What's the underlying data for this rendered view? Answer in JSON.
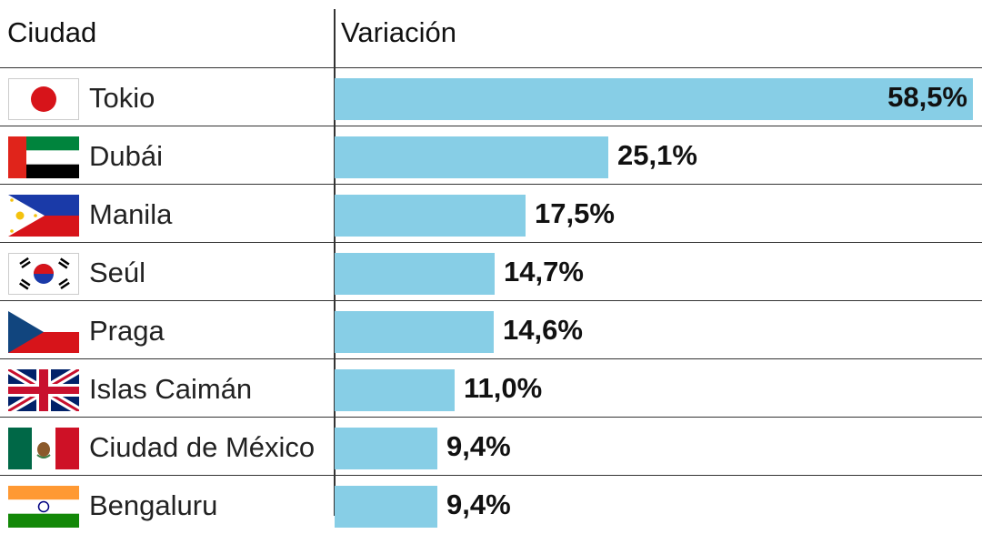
{
  "chart_data": {
    "type": "bar",
    "orientation": "horizontal",
    "headers": {
      "city": "Ciudad",
      "value": "Variación"
    },
    "rows": [
      {
        "city": "Tokio",
        "value": 58.5,
        "label": "58,5%",
        "flag": "japan-flag-icon"
      },
      {
        "city": "Dubái",
        "value": 25.1,
        "label": "25,1%",
        "flag": "uae-flag-icon"
      },
      {
        "city": "Manila",
        "value": 17.5,
        "label": "17,5%",
        "flag": "philippines-flag-icon"
      },
      {
        "city": "Seúl",
        "value": 14.7,
        "label": "14,7%",
        "flag": "south-korea-flag-icon"
      },
      {
        "city": "Praga",
        "value": 14.6,
        "label": "14,6%",
        "flag": "czech-flag-icon"
      },
      {
        "city": "Islas Caimán",
        "value": 11.0,
        "label": "11,0%",
        "flag": "uk-flag-icon"
      },
      {
        "city": "Ciudad de México",
        "value": 9.4,
        "label": "9,4%",
        "flag": "mexico-flag-icon"
      },
      {
        "city": "Bengaluru",
        "value": 9.4,
        "label": "9,4%",
        "flag": "india-flag-icon"
      }
    ],
    "bar_color": "#87CEE6"
  }
}
